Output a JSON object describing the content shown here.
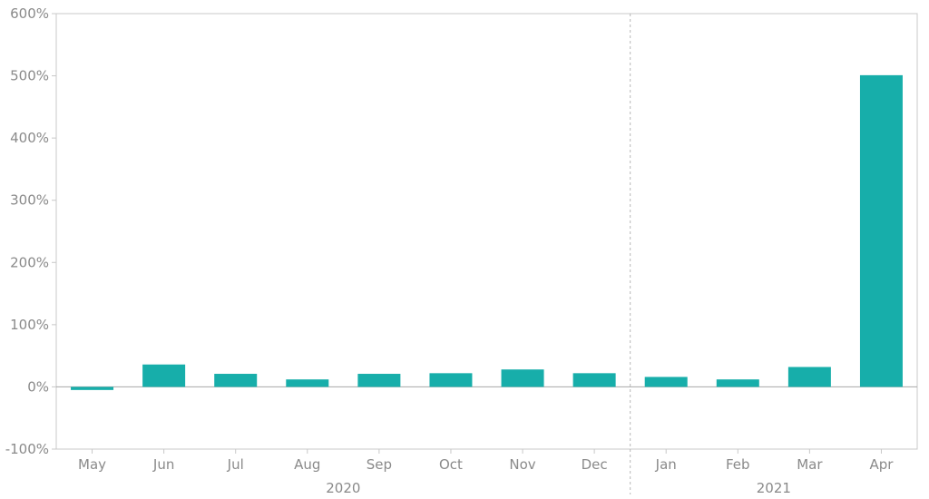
{
  "chart_data": {
    "type": "bar",
    "categories": [
      "May",
      "Jun",
      "Jul",
      "Aug",
      "Sep",
      "Oct",
      "Nov",
      "Dec",
      "Jan",
      "Feb",
      "Mar",
      "Apr"
    ],
    "values": [
      -5,
      36,
      21,
      12,
      21,
      22,
      28,
      22,
      16,
      12,
      32,
      501
    ],
    "year_groups": [
      {
        "label": "2020",
        "start": 0,
        "end": 7
      },
      {
        "label": "2021",
        "start": 8,
        "end": 11
      }
    ],
    "yticks": [
      -100,
      0,
      100,
      200,
      300,
      400,
      500,
      600
    ],
    "ytick_labels": [
      "-100%",
      "0%",
      "100%",
      "200%",
      "300%",
      "400%",
      "500%",
      "600%"
    ],
    "ylim": [
      -100,
      600
    ],
    "title": "",
    "xlabel": "",
    "ylabel": "",
    "bar_color": "#17aeaa",
    "grid": false,
    "legend": "none"
  }
}
